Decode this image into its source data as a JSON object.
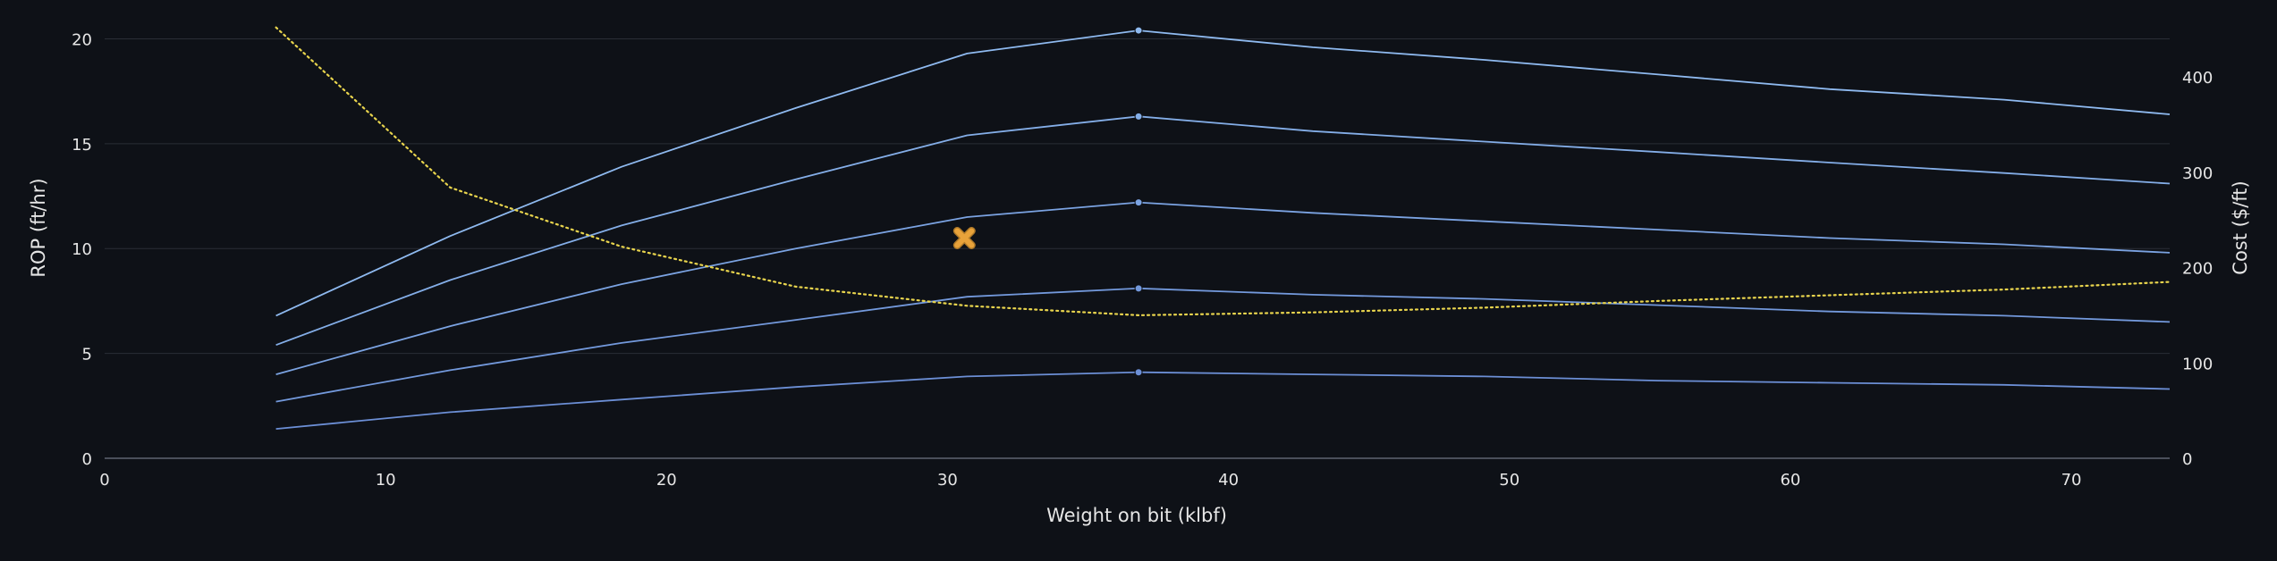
{
  "colors": {
    "background": "#0e1117",
    "grid": "#2a2e37",
    "axis": "#4a4f5a",
    "tick_text": "#e6e6e6",
    "rop_series": [
      "#6c8fd6",
      "#7399dc",
      "#7ba3e2",
      "#84aee8",
      "#8fbaf0"
    ],
    "cost_series": "#e8d44d",
    "marker_fill": "#e8a23a",
    "marker_stroke": "#b07a28"
  },
  "chart_data": {
    "type": "line",
    "xlabel": "Weight on bit (klbf)",
    "ylabel": "ROP (ft/hr)",
    "y2label": "Cost ($/ft)",
    "xlim": [
      0,
      73.5
    ],
    "ylim": [
      0,
      21
    ],
    "y2lim": [
      0,
      462
    ],
    "x_ticks": [
      "0",
      "10",
      "20",
      "30",
      "40",
      "50",
      "60",
      "70"
    ],
    "y_ticks": [
      "0",
      "5",
      "10",
      "15",
      "20"
    ],
    "y2_ticks": [
      "0",
      "100",
      "200",
      "300",
      "400"
    ],
    "grid": true,
    "rop_x": [
      6.1,
      12.3,
      18.4,
      24.6,
      30.7,
      36.8,
      43.0,
      49.1,
      55.3,
      61.4,
      67.6,
      73.5
    ],
    "series": [
      {
        "values": [
          1.4,
          2.2,
          2.8,
          3.4,
          3.9,
          4.1,
          4.0,
          3.9,
          3.7,
          3.6,
          3.5,
          3.3
        ]
      },
      {
        "values": [
          2.7,
          4.2,
          5.5,
          6.6,
          7.7,
          8.1,
          7.8,
          7.6,
          7.3,
          7.0,
          6.8,
          6.5
        ]
      },
      {
        "values": [
          4.0,
          6.3,
          8.3,
          10.0,
          11.5,
          12.2,
          11.7,
          11.3,
          10.9,
          10.5,
          10.2,
          9.8
        ]
      },
      {
        "values": [
          5.4,
          8.5,
          11.1,
          13.3,
          15.4,
          16.3,
          15.6,
          15.1,
          14.6,
          14.1,
          13.6,
          13.1
        ]
      },
      {
        "values": [
          6.8,
          10.6,
          13.9,
          16.7,
          19.3,
          20.4,
          19.6,
          19.0,
          18.3,
          17.6,
          17.1,
          16.4
        ]
      }
    ],
    "peak_x": 36.8,
    "cost_series": {
      "style": "dotted",
      "x": [
        6.1,
        12.3,
        18.4,
        24.6,
        30.7,
        36.8,
        43.0,
        49.1,
        55.3,
        61.4,
        67.6,
        73.5
      ],
      "values": [
        452,
        284,
        222,
        180,
        160,
        150,
        153,
        158,
        165,
        171,
        177,
        185
      ]
    },
    "marker": {
      "shape": "x",
      "x": 30.6,
      "y": 10.5
    }
  }
}
